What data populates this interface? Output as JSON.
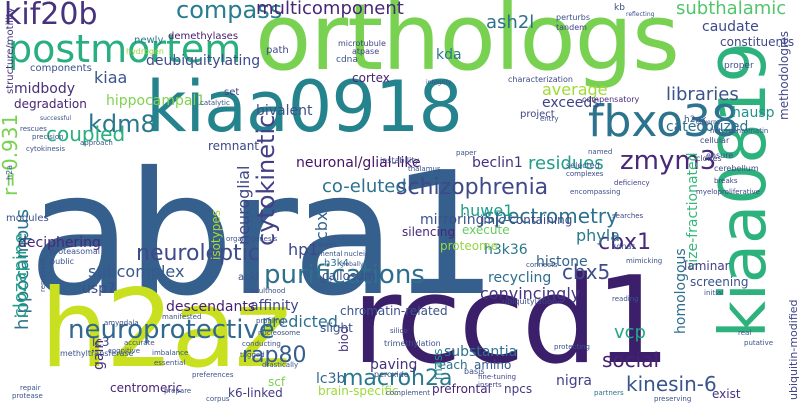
{
  "words": [
    {
      "text": "abra1",
      "color": "#355f8d"
    },
    {
      "text": "rccd1",
      "color": "#3b1f6a"
    },
    {
      "text": "h2az",
      "color": "#c8e020"
    },
    {
      "text": "orthologs",
      "color": "#79d151"
    },
    {
      "text": "kiaa0918",
      "color": "#25838e"
    },
    {
      "text": "kiaa0819",
      "color": "#2db27d"
    },
    {
      "text": "postmortem",
      "color": "#29af7f"
    },
    {
      "text": "fbxo38",
      "color": "#2c738e"
    },
    {
      "text": "purifications",
      "color": "#2e6f8e"
    },
    {
      "text": "neuroprotective",
      "color": "#31688e"
    },
    {
      "text": "kif20b",
      "color": "#46327e"
    },
    {
      "text": "schizophrenia",
      "color": "#3f4889"
    },
    {
      "text": "compass",
      "color": "#287d8e"
    },
    {
      "text": "kdm8",
      "color": "#2a788e"
    },
    {
      "text": "zmym3",
      "color": "#482878"
    },
    {
      "text": "cytokinetic",
      "color": "#424086"
    },
    {
      "text": "neuroleptic",
      "color": "#3e4a89"
    },
    {
      "text": "spectrometry",
      "color": "#2c728e"
    },
    {
      "text": "cbx1",
      "color": "#482979"
    },
    {
      "text": "cbx5",
      "color": "#3d4e8a"
    },
    {
      "text": "rap80",
      "color": "#365d8d"
    },
    {
      "text": "macroh2a",
      "color": "#29798e"
    },
    {
      "text": "social",
      "color": "#482173"
    },
    {
      "text": "kinesin-6",
      "color": "#3a548c"
    },
    {
      "text": "hippocampus",
      "color": "#2b758e"
    },
    {
      "text": "r=0.931",
      "color": "#7ad151"
    },
    {
      "text": "coupled",
      "color": "#2ab07f"
    },
    {
      "text": "multicomponent",
      "color": "#482677"
    },
    {
      "text": "ash2l",
      "color": "#2d708e"
    },
    {
      "text": "subthalamic",
      "color": "#52c569"
    },
    {
      "text": "caudate",
      "color": "#3e4a89"
    },
    {
      "text": "libraries",
      "color": "#3b528b"
    },
    {
      "text": "methodologies",
      "color": "#3f4788"
    },
    {
      "text": "size-fractionated",
      "color": "#35b779"
    },
    {
      "text": "ubiquitin-modified",
      "color": "#414487"
    },
    {
      "text": "hausp",
      "color": "#21918c"
    },
    {
      "text": "residues",
      "color": "#1f9e89"
    },
    {
      "text": "co-eluted",
      "color": "#2c728e"
    },
    {
      "text": "huwe1",
      "color": "#1fa088"
    },
    {
      "text": "neuroglial",
      "color": "#3f4788"
    },
    {
      "text": "neuronal/glial-like",
      "color": "#471365"
    },
    {
      "text": "beclin1",
      "color": "#46307e"
    },
    {
      "text": "cbx3",
      "color": "#33638d"
    },
    {
      "text": "clozapine",
      "color": "#1fa187"
    },
    {
      "text": "jmjc-containing",
      "color": "#3e4989"
    },
    {
      "text": "phyla",
      "color": "#2a788e"
    },
    {
      "text": "hp1",
      "color": "#404588"
    },
    {
      "text": "h3k36",
      "color": "#2a788e"
    },
    {
      "text": "histone",
      "color": "#33638d"
    },
    {
      "text": "recycling",
      "color": "#2e6e8e"
    },
    {
      "text": "convincingly",
      "color": "#453581"
    },
    {
      "text": "subcomplex",
      "color": "#375a8c"
    },
    {
      "text": "affinity",
      "color": "#3f4889"
    },
    {
      "text": "predicted",
      "color": "#2c728e"
    },
    {
      "text": "chromatin-related",
      "color": "#3b528b"
    },
    {
      "text": "usp7",
      "color": "#3c4f8a"
    },
    {
      "text": "descendants",
      "color": "#481f70"
    },
    {
      "text": "deubiquitylating",
      "color": "#3e4a89"
    },
    {
      "text": "kiaa",
      "color": "#39558c"
    },
    {
      "text": "midbody",
      "color": "#472e7c"
    },
    {
      "text": "hippocampal1",
      "color": "#7fd34e"
    },
    {
      "text": "bivalent",
      "color": "#3b528b"
    },
    {
      "text": "degradation",
      "color": "#482475"
    },
    {
      "text": "average",
      "color": "#a2da37"
    },
    {
      "text": "exceeds",
      "color": "#404387"
    },
    {
      "text": "categorized",
      "color": "#2c728e"
    },
    {
      "text": "kda",
      "color": "#2a778e"
    },
    {
      "text": "constituents",
      "color": "#3f4889"
    },
    {
      "text": "deciphering",
      "color": "#482878"
    },
    {
      "text": "isotypes",
      "color": "#a8db34"
    },
    {
      "text": "mirroring",
      "color": "#3b528b"
    },
    {
      "text": "execute",
      "color": "#65cb5e"
    },
    {
      "text": "proteome",
      "color": "#95d840"
    },
    {
      "text": "homologous",
      "color": "#2e6e8e"
    },
    {
      "text": "laminar",
      "color": "#424086"
    },
    {
      "text": "screening",
      "color": "#3b518b"
    },
    {
      "text": "callosum",
      "color": "#3b528b"
    },
    {
      "text": "vcp",
      "color": "#22a785"
    },
    {
      "text": "substantia",
      "color": "#2d718e"
    },
    {
      "text": "nigra",
      "color": "#424186"
    },
    {
      "text": "reach",
      "color": "#2c718e"
    },
    {
      "text": "paving",
      "color": "#46337e"
    },
    {
      "text": "prefrontal",
      "color": "#482576"
    },
    {
      "text": "amino",
      "color": "#375b8d"
    },
    {
      "text": "mass",
      "color": "#23898e"
    },
    {
      "text": "npcs",
      "color": "#443a83"
    },
    {
      "text": "lc3b",
      "color": "#31678e"
    },
    {
      "text": "gain",
      "color": "#472d7b"
    },
    {
      "text": "scf",
      "color": "#7ad151"
    },
    {
      "text": "brain-specific",
      "color": "#9bd93c"
    },
    {
      "text": "k6-linked",
      "color": "#453882"
    },
    {
      "text": "centromeric",
      "color": "#482475"
    },
    {
      "text": "exist",
      "color": "#46307e"
    },
    {
      "text": "biod",
      "color": "#46337e"
    },
    {
      "text": "slight",
      "color": "#3b528b"
    },
    {
      "text": "remnant",
      "color": "#3f4788"
    },
    {
      "text": "silencing",
      "color": "#482677"
    },
    {
      "text": "acid",
      "color": "#39568c"
    },
    {
      "text": "h3k4",
      "color": "#2d708e"
    },
    {
      "text": "lc3",
      "color": "#404688"
    },
    {
      "text": "cortex",
      "color": "#482374"
    },
    {
      "text": "set",
      "color": "#3f4889"
    },
    {
      "text": "components",
      "color": "#3b528b"
    },
    {
      "text": "structure/motility",
      "color": "#46337e"
    },
    {
      "text": "newly",
      "color": "#2a788e"
    },
    {
      "text": "demethylases",
      "color": "#481a6c"
    },
    {
      "text": "hydrogen",
      "color": "#95d840"
    },
    {
      "text": "path",
      "color": "#3f4889"
    },
    {
      "text": "cdna",
      "color": "#3b528b"
    },
    {
      "text": "microtubule",
      "color": "#414487"
    },
    {
      "text": "atpase",
      "color": "#424186"
    },
    {
      "text": "kb",
      "color": "#3b528b"
    },
    {
      "text": "h2ax",
      "color": "#39568c"
    },
    {
      "text": "perturbs",
      "color": "#3b528b"
    },
    {
      "text": "tandem",
      "color": "#414487"
    },
    {
      "text": "characterization",
      "color": "#3e4a89"
    },
    {
      "text": "proper",
      "color": "#3b528b"
    },
    {
      "text": "project",
      "color": "#414487"
    },
    {
      "text": "compensatory",
      "color": "#472c7a"
    },
    {
      "text": "heterochromatin",
      "color": "#3b528b"
    },
    {
      "text": "govern",
      "color": "#3b528b"
    },
    {
      "text": "cellular",
      "color": "#3e4a89"
    },
    {
      "text": "ensure",
      "color": "#3e4989"
    },
    {
      "text": "cerebellum",
      "color": "#3e4a89"
    },
    {
      "text": "breaks",
      "color": "#414487"
    },
    {
      "text": "clones",
      "color": "#3f4889"
    },
    {
      "text": "named",
      "color": "#3b528b"
    },
    {
      "text": "selected",
      "color": "#3b528b"
    },
    {
      "text": "complexes",
      "color": "#3e4a89"
    },
    {
      "text": "deficiency",
      "color": "#414487"
    },
    {
      "text": "myeloproliferative",
      "color": "#404588"
    },
    {
      "text": "encompassing",
      "color": "#3b528b"
    },
    {
      "text": "searches",
      "color": "#414487"
    },
    {
      "text": "cdnas",
      "color": "#3b528b"
    },
    {
      "text": "initial",
      "color": "#3b528b"
    },
    {
      "text": "mimicking",
      "color": "#3b528b"
    },
    {
      "text": "connects",
      "color": "#3b528b"
    },
    {
      "text": "ubiquitylation",
      "color": "#3f4889"
    },
    {
      "text": "reading",
      "color": "#3b528b"
    },
    {
      "text": "silico",
      "color": "#3b528b"
    },
    {
      "text": "trimethylation",
      "color": "#3b528b"
    },
    {
      "text": "protecting",
      "color": "#3b528b"
    },
    {
      "text": "basis",
      "color": "#3b528b"
    },
    {
      "text": "fine-tuning",
      "color": "#414487"
    },
    {
      "text": "inserts",
      "color": "#3e4a89"
    },
    {
      "text": "peroxide",
      "color": "#3b528b"
    },
    {
      "text": "partners",
      "color": "#2d708e"
    },
    {
      "text": "preserving",
      "color": "#3b528b"
    },
    {
      "text": "real",
      "color": "#3b528b"
    },
    {
      "text": "putative",
      "color": "#3b528b"
    },
    {
      "text": "complement",
      "color": "#3b528b"
    },
    {
      "text": "repair",
      "color": "#3b528b"
    },
    {
      "text": "protease",
      "color": "#3b528b"
    },
    {
      "text": "prepare",
      "color": "#3b528b"
    },
    {
      "text": "corpus",
      "color": "#3b528b"
    },
    {
      "text": "preferences",
      "color": "#3b528b"
    },
    {
      "text": "profiling",
      "color": "#3b528b"
    },
    {
      "text": "nucleosome",
      "color": "#3b528b"
    },
    {
      "text": "conducting",
      "color": "#3b528b"
    },
    {
      "text": "tagged",
      "color": "#3b528b"
    },
    {
      "text": "drastically",
      "color": "#3b528b"
    },
    {
      "text": "essential",
      "color": "#3b528b"
    },
    {
      "text": "imbalance",
      "color": "#3b528b"
    },
    {
      "text": "cognitive",
      "color": "#3b528b"
    },
    {
      "text": "accurate",
      "color": "#3b528b"
    },
    {
      "text": "methyltransferase",
      "color": "#3b528b"
    },
    {
      "text": "amygdala",
      "color": "#3b528b"
    },
    {
      "text": "manifested",
      "color": "#3b528b"
    },
    {
      "text": "adulthood",
      "color": "#3b528b"
    },
    {
      "text": "bcl2",
      "color": "#3b528b"
    },
    {
      "text": "mental",
      "color": "#3b528b"
    },
    {
      "text": "frames",
      "color": "#3b528b"
    },
    {
      "text": "nucleic",
      "color": "#3b528b"
    },
    {
      "text": "globally",
      "color": "#3b528b"
    },
    {
      "text": "organogenesis",
      "color": "#3b528b"
    },
    {
      "text": "proteasomal",
      "color": "#3b528b"
    },
    {
      "text": "public",
      "color": "#3b528b"
    },
    {
      "text": "represent",
      "color": "#3b528b"
    },
    {
      "text": "modules",
      "color": "#3b528b"
    },
    {
      "text": "h2a",
      "color": "#3b528b"
    },
    {
      "text": "cytokinesis",
      "color": "#3b528b"
    },
    {
      "text": "approach",
      "color": "#3b528b"
    },
    {
      "text": "precision",
      "color": "#3b528b"
    },
    {
      "text": "rescues",
      "color": "#3b528b"
    },
    {
      "text": "successful",
      "color": "#3b528b"
    },
    {
      "text": "catalytic",
      "color": "#3b528b"
    },
    {
      "text": "integrity",
      "color": "#3b528b"
    },
    {
      "text": "entry",
      "color": "#3b528b"
    },
    {
      "text": "reflecting",
      "color": "#3b528b"
    },
    {
      "text": "instability",
      "color": "#3b528b"
    },
    {
      "text": "paper",
      "color": "#3b528b"
    },
    {
      "text": "thalamus",
      "color": "#3b528b"
    },
    {
      "text": "neocortex",
      "color": "#3b528b"
    }
  ]
}
